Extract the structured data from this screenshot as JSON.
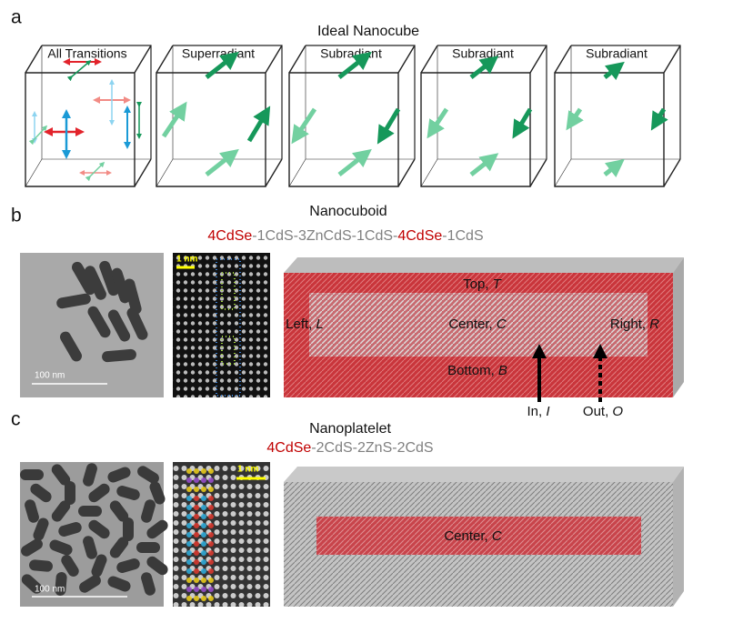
{
  "panels": [
    {
      "letter": "a",
      "title": "Ideal Nanocube",
      "cubes": [
        "All Transitions",
        "Superradiant",
        "Subradiant",
        "Subradiant",
        "Subradiant"
      ]
    },
    {
      "letter": "b",
      "title": "Nanocuboid",
      "composition": [
        {
          "text": "4CdSe",
          "color": "#c00000"
        },
        {
          "text": "-1CdS-3ZnCdS-1CdS-",
          "color": "#808080"
        },
        {
          "text": "4CdSe",
          "color": "#c00000"
        },
        {
          "text": "-1CdS",
          "color": "#808080"
        }
      ],
      "tem_scale": "100 nm",
      "hrtem_scale": "1 nm",
      "regions": [
        {
          "label": "Top, ",
          "symbol": "T"
        },
        {
          "label": "Left, ",
          "symbol": "L"
        },
        {
          "label": "Center, ",
          "symbol": "C"
        },
        {
          "label": "Right, ",
          "symbol": "R"
        },
        {
          "label": "Bottom, ",
          "symbol": "B"
        },
        {
          "label": "In, ",
          "symbol": "I"
        },
        {
          "label": "Out, ",
          "symbol": "O"
        }
      ]
    },
    {
      "letter": "c",
      "title": "Nanoplatelet",
      "composition": [
        {
          "text": "4CdSe",
          "color": "#c00000"
        },
        {
          "text": "-2CdS-2ZnS-2CdS",
          "color": "#808080"
        }
      ],
      "tem_scale": "100 nm",
      "hrtem_scale": "1 nm",
      "regions": [
        {
          "label": "Center, ",
          "symbol": "C"
        }
      ]
    }
  ]
}
